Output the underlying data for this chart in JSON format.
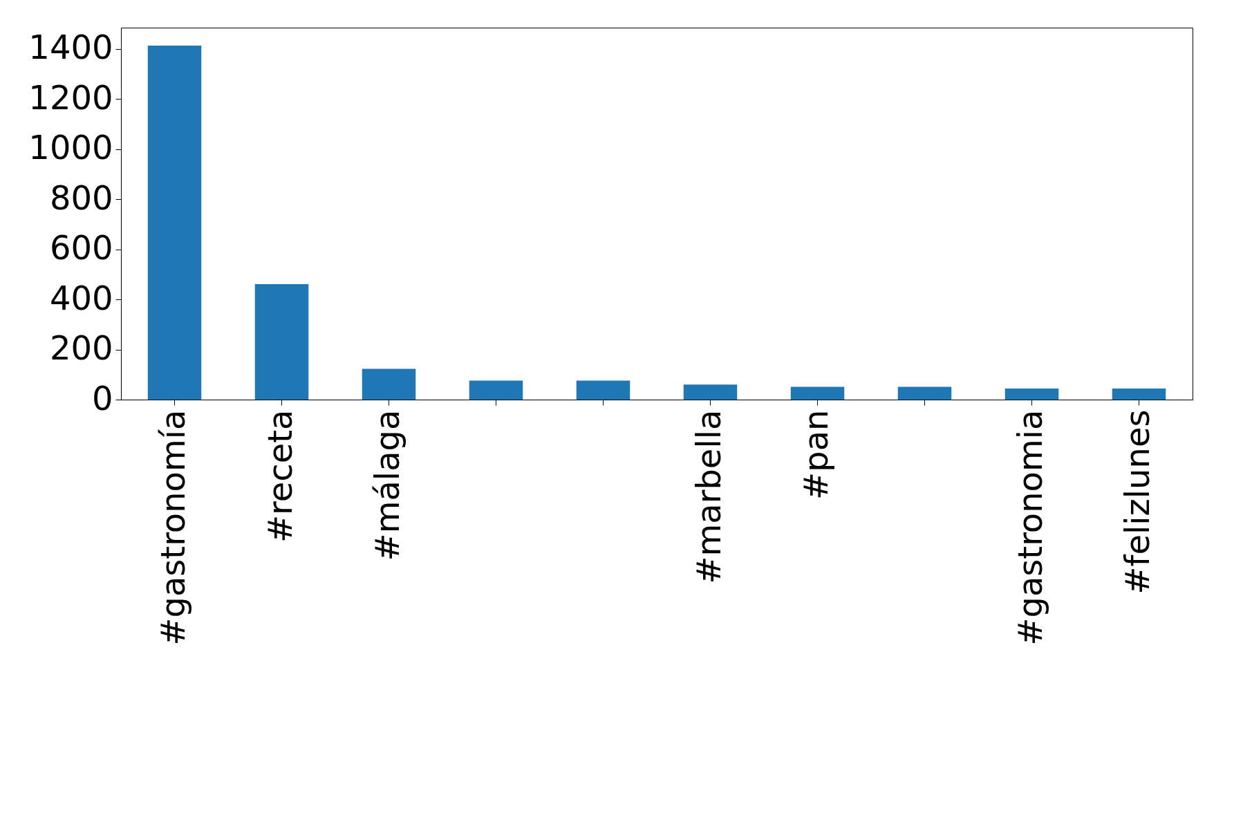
{
  "chart_data": {
    "type": "bar",
    "categories": [
      "#gastronomía",
      "#receta",
      "#málaga",
      null,
      null,
      "#marbella",
      "#pan",
      null,
      "#gastronomia",
      "#felizlunes"
    ],
    "values": [
      1413,
      461,
      123,
      76,
      76,
      60,
      51,
      51,
      44,
      44
    ],
    "color": "#1f77b4",
    "ylim": [
      0,
      1485
    ],
    "yticks": [
      0,
      200,
      400,
      600,
      800,
      1000,
      1200,
      1400
    ],
    "grid": false
  }
}
